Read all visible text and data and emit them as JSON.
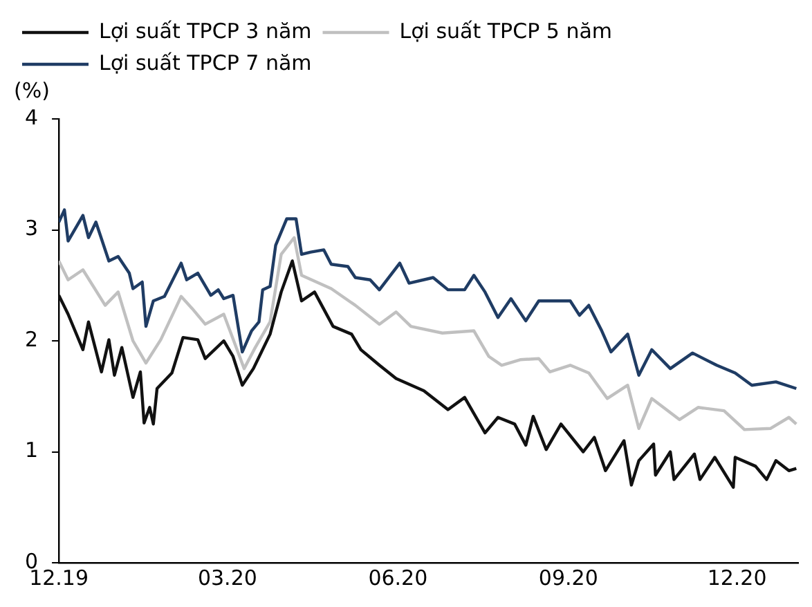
{
  "chart_data": {
    "type": "line",
    "ylabel": "(%)",
    "xlim": [
      "2019-12-01",
      "2021-01-03"
    ],
    "xticks": [
      {
        "value": "2019-12-01",
        "label": "12.19"
      },
      {
        "value": "2020-03-01",
        "label": "03.20"
      },
      {
        "value": "2020-06-01",
        "label": "06.20"
      },
      {
        "value": "2020-09-01",
        "label": "09.20"
      },
      {
        "value": "2020-12-01",
        "label": "12.20"
      }
    ],
    "ylim": [
      0,
      4
    ],
    "yticks": [
      0,
      1,
      2,
      3,
      4
    ],
    "grid": false,
    "legend": "top",
    "marker": "none",
    "line_style": "solid",
    "series": [
      {
        "name": "Lợi suất TPCP 3 năm",
        "color": "#111111",
        "x": [
          "2019-12-01",
          "2019-12-06",
          "2019-12-14",
          "2019-12-17",
          "2019-12-24",
          "2019-12-28",
          "2019-12-31",
          "2020-01-04",
          "2020-01-10",
          "2020-01-14",
          "2020-01-16",
          "2020-01-19",
          "2020-01-21",
          "2020-01-23",
          "2020-01-31",
          "2020-02-06",
          "2020-02-14",
          "2020-02-18",
          "2020-02-28",
          "2020-03-04",
          "2020-03-09",
          "2020-03-15",
          "2020-03-24",
          "2020-03-30",
          "2020-04-05",
          "2020-04-10",
          "2020-04-17",
          "2020-04-27",
          "2020-05-07",
          "2020-05-12",
          "2020-05-22",
          "2020-05-31",
          "2020-06-15",
          "2020-06-28",
          "2020-07-07",
          "2020-07-18",
          "2020-07-25",
          "2020-08-03",
          "2020-08-09",
          "2020-08-13",
          "2020-08-20",
          "2020-08-28",
          "2020-09-09",
          "2020-09-15",
          "2020-09-21",
          "2020-10-01",
          "2020-10-05",
          "2020-10-09",
          "2020-10-17",
          "2020-10-18",
          "2020-10-26",
          "2020-10-28",
          "2020-11-08",
          "2020-11-11",
          "2020-11-19",
          "2020-11-29",
          "2020-11-30",
          "2020-12-11",
          "2020-12-17",
          "2020-12-22",
          "2020-12-29",
          "2021-01-02"
        ],
        "values": [
          2.41,
          2.24,
          1.92,
          2.17,
          1.72,
          2.01,
          1.69,
          1.94,
          1.49,
          1.72,
          1.26,
          1.4,
          1.25,
          1.57,
          1.71,
          2.03,
          2.01,
          1.84,
          2.0,
          1.86,
          1.6,
          1.75,
          2.06,
          2.44,
          2.72,
          2.36,
          2.44,
          2.13,
          2.06,
          1.92,
          1.78,
          1.66,
          1.55,
          1.38,
          1.49,
          1.17,
          1.31,
          1.25,
          1.06,
          1.32,
          1.02,
          1.25,
          1.0,
          1.13,
          0.83,
          1.1,
          0.7,
          0.92,
          1.07,
          0.79,
          1.0,
          0.75,
          0.98,
          0.75,
          0.95,
          0.68,
          0.95,
          0.87,
          0.75,
          0.92,
          0.83,
          0.85
        ]
      },
      {
        "name": "Lợi suất TPCP 5 năm",
        "color": "#c0c0c0",
        "x": [
          "2019-12-01",
          "2019-12-06",
          "2019-12-14",
          "2019-12-26",
          "2020-01-02",
          "2020-01-10",
          "2020-01-17",
          "2020-01-25",
          "2020-02-05",
          "2020-02-11",
          "2020-02-18",
          "2020-02-28",
          "2020-03-10",
          "2020-03-16",
          "2020-03-24",
          "2020-03-30",
          "2020-04-06",
          "2020-04-10",
          "2020-04-26",
          "2020-05-09",
          "2020-05-22",
          "2020-05-31",
          "2020-06-08",
          "2020-06-25",
          "2020-07-12",
          "2020-07-20",
          "2020-07-27",
          "2020-08-06",
          "2020-08-16",
          "2020-08-22",
          "2020-09-02",
          "2020-09-12",
          "2020-09-22",
          "2020-10-03",
          "2020-10-09",
          "2020-10-16",
          "2020-10-31",
          "2020-11-10",
          "2020-11-24",
          "2020-12-05",
          "2020-12-19",
          "2020-12-29",
          "2021-01-02"
        ],
        "values": [
          2.72,
          2.55,
          2.64,
          2.32,
          2.44,
          2.0,
          1.8,
          2.01,
          2.4,
          2.29,
          2.15,
          2.24,
          1.75,
          1.94,
          2.17,
          2.78,
          2.93,
          2.59,
          2.47,
          2.32,
          2.15,
          2.26,
          2.13,
          2.07,
          2.09,
          1.86,
          1.78,
          1.83,
          1.84,
          1.72,
          1.78,
          1.71,
          1.48,
          1.6,
          1.21,
          1.48,
          1.29,
          1.4,
          1.37,
          1.2,
          1.21,
          1.31,
          1.25
        ]
      },
      {
        "name": "Lợi suất TPCP 7 năm",
        "color": "#1f3c64",
        "x": [
          "2019-12-01",
          "2019-12-04",
          "2019-12-06",
          "2019-12-14",
          "2019-12-17",
          "2019-12-21",
          "2019-12-28",
          "2020-01-02",
          "2020-01-08",
          "2020-01-10",
          "2020-01-15",
          "2020-01-17",
          "2020-01-21",
          "2020-01-27",
          "2020-02-05",
          "2020-02-08",
          "2020-02-14",
          "2020-02-21",
          "2020-02-25",
          "2020-02-28",
          "2020-03-04",
          "2020-03-09",
          "2020-03-14",
          "2020-03-18",
          "2020-03-20",
          "2020-03-24",
          "2020-03-27",
          "2020-04-02",
          "2020-04-07",
          "2020-04-10",
          "2020-04-15",
          "2020-04-22",
          "2020-04-26",
          "2020-05-05",
          "2020-05-09",
          "2020-05-17",
          "2020-05-22",
          "2020-06-02",
          "2020-06-07",
          "2020-06-20",
          "2020-06-28",
          "2020-07-07",
          "2020-07-12",
          "2020-07-18",
          "2020-07-25",
          "2020-08-01",
          "2020-08-09",
          "2020-08-16",
          "2020-09-02",
          "2020-09-07",
          "2020-09-12",
          "2020-09-19",
          "2020-09-24",
          "2020-10-03",
          "2020-10-09",
          "2020-10-16",
          "2020-10-26",
          "2020-11-07",
          "2020-11-20",
          "2020-11-30",
          "2020-12-09",
          "2020-12-22",
          "2021-01-02"
        ],
        "values": [
          3.07,
          3.18,
          2.9,
          3.13,
          2.93,
          3.07,
          2.72,
          2.76,
          2.61,
          2.47,
          2.53,
          2.13,
          2.36,
          2.4,
          2.7,
          2.55,
          2.61,
          2.41,
          2.46,
          2.38,
          2.41,
          1.9,
          2.09,
          2.17,
          2.46,
          2.49,
          2.86,
          3.1,
          3.1,
          2.78,
          2.8,
          2.82,
          2.69,
          2.67,
          2.57,
          2.55,
          2.46,
          2.7,
          2.52,
          2.57,
          2.46,
          2.46,
          2.59,
          2.44,
          2.21,
          2.38,
          2.18,
          2.36,
          2.36,
          2.23,
          2.32,
          2.09,
          1.9,
          2.06,
          1.69,
          1.92,
          1.75,
          1.89,
          1.78,
          1.71,
          1.6,
          1.63,
          1.57
        ]
      }
    ]
  }
}
